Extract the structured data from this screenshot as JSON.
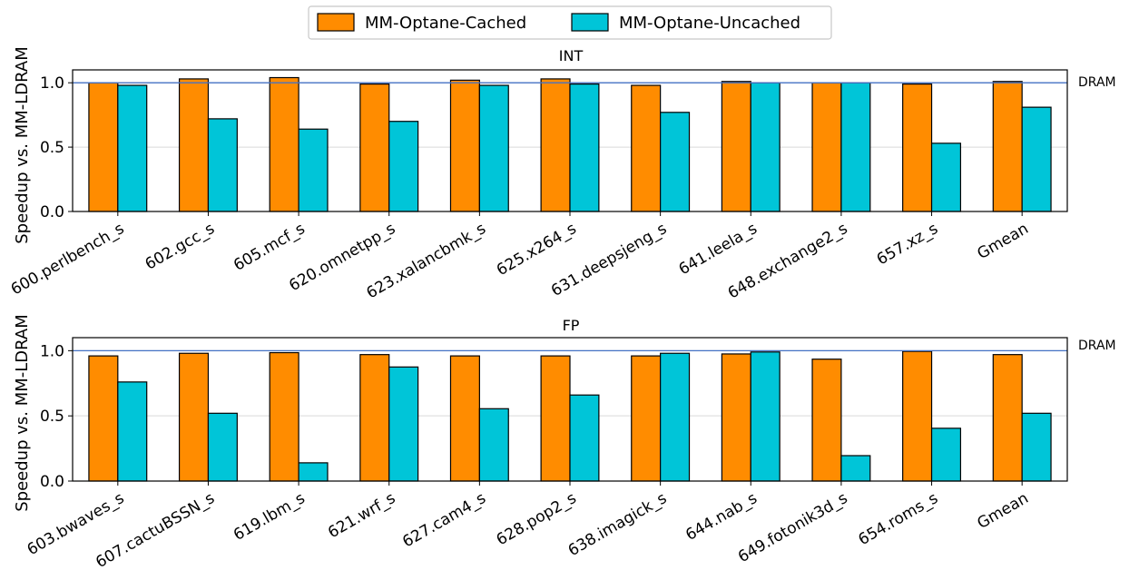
{
  "legend": {
    "items": [
      {
        "label": "MM-Optane-Cached",
        "color": "#ff8c00"
      },
      {
        "label": "MM-Optane-Uncached",
        "color": "#00c5d8"
      }
    ]
  },
  "reference_line": {
    "label": "DRAM",
    "value": 1.0,
    "color": "#4472c4"
  },
  "chart_data": [
    {
      "type": "bar",
      "title": "INT",
      "ylabel": "Speedup vs. MM-LDRAM",
      "ylim": [
        0,
        1.1
      ],
      "yticks": [
        "0.0",
        "0.5",
        "1.0"
      ],
      "grid": "horizontal",
      "categories": [
        "600.perlbench_s",
        "602.gcc_s",
        "605.mcf_s",
        "620.omnetpp_s",
        "623.xalancbmk_s",
        "625.x264_s",
        "631.deepsjeng_s",
        "641.leela_s",
        "648.exchange2_s",
        "657.xz_s",
        "Gmean"
      ],
      "series": [
        {
          "name": "MM-Optane-Cached",
          "values": [
            1.0,
            1.03,
            1.04,
            0.99,
            1.02,
            1.03,
            0.98,
            1.01,
            1.0,
            0.99,
            1.01
          ]
        },
        {
          "name": "MM-Optane-Uncached",
          "values": [
            0.98,
            0.72,
            0.64,
            0.7,
            0.98,
            0.99,
            0.77,
            1.0,
            1.0,
            0.53,
            0.81
          ]
        }
      ]
    },
    {
      "type": "bar",
      "title": "FP",
      "ylabel": "Speedup vs. MM-LDRAM",
      "ylim": [
        0,
        1.1
      ],
      "yticks": [
        "0.0",
        "0.5",
        "1.0"
      ],
      "grid": "horizontal",
      "categories": [
        "603.bwaves_s",
        "607.cactuBSSN_s",
        "619.lbm_s",
        "621.wrf_s",
        "627.cam4_s",
        "628.pop2_s",
        "638.imagick_s",
        "644.nab_s",
        "649.fotonik3d_s",
        "654.roms_s",
        "Gmean"
      ],
      "series": [
        {
          "name": "MM-Optane-Cached",
          "values": [
            0.96,
            0.98,
            0.985,
            0.97,
            0.96,
            0.96,
            0.96,
            0.975,
            0.935,
            0.995,
            0.97
          ]
        },
        {
          "name": "MM-Optane-Uncached",
          "values": [
            0.76,
            0.52,
            0.14,
            0.875,
            0.555,
            0.66,
            0.98,
            0.99,
            0.195,
            0.405,
            0.52
          ]
        }
      ]
    }
  ]
}
